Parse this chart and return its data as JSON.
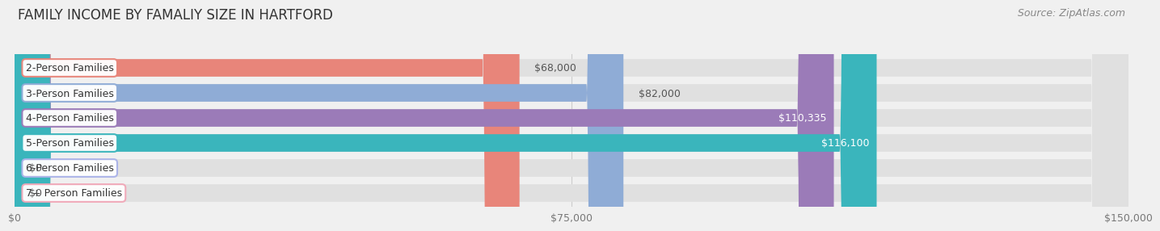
{
  "title": "FAMILY INCOME BY FAMALIY SIZE IN HARTFORD",
  "source": "Source: ZipAtlas.com",
  "categories": [
    "2-Person Families",
    "3-Person Families",
    "4-Person Families",
    "5-Person Families",
    "6-Person Families",
    "7+ Person Families"
  ],
  "values": [
    68000,
    82000,
    110335,
    116100,
    0,
    0
  ],
  "bar_colors": [
    "#e8857a",
    "#8facd6",
    "#9b7bb8",
    "#3ab5bc",
    "#aab2e8",
    "#f0a8b8"
  ],
  "value_labels": [
    "$68,000",
    "$82,000",
    "$110,335",
    "$116,100",
    "$0",
    "$0"
  ],
  "value_inside": [
    false,
    false,
    true,
    true,
    false,
    false
  ],
  "xmax": 150000,
  "xtick_vals": [
    0,
    75000,
    150000
  ],
  "xtick_labels": [
    "$0",
    "$75,000",
    "$150,000"
  ],
  "background_color": "#f0f0f0",
  "bar_bg_color": "#e0e0e0",
  "title_fontsize": 12,
  "source_fontsize": 9,
  "label_fontsize": 9,
  "value_fontsize": 9
}
